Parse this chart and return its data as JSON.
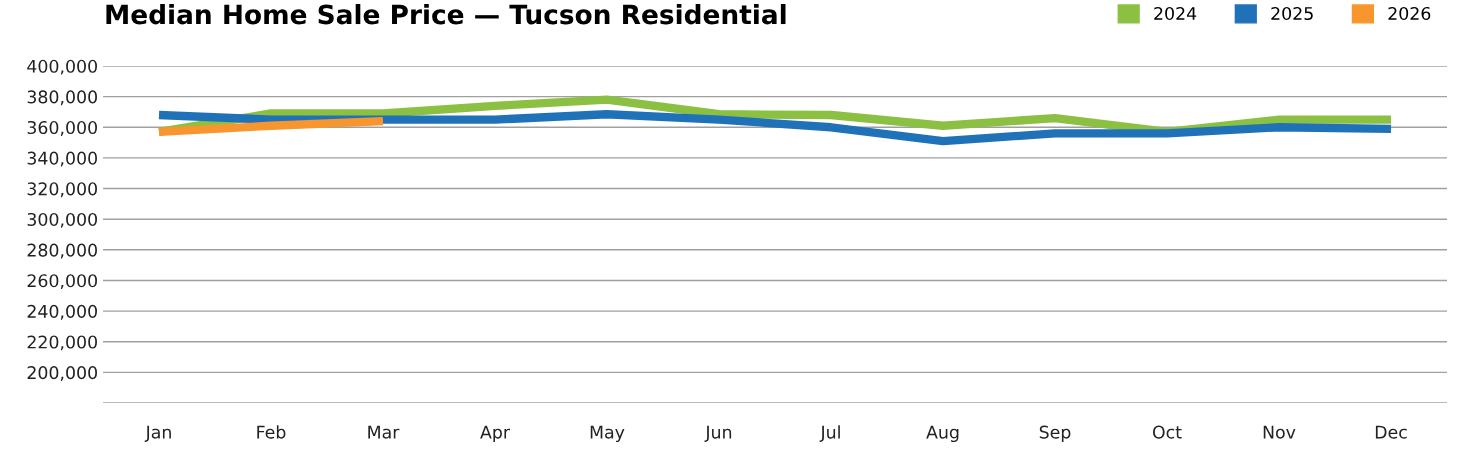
{
  "chart_data": {
    "type": "line",
    "title": "Median Home Sale Price — Tucson Residential",
    "categories": [
      "Jan",
      "Feb",
      "Mar",
      "Apr",
      "May",
      "Jun",
      "Jul",
      "Aug",
      "Sep",
      "Oct",
      "Nov",
      "Dec"
    ],
    "series": [
      {
        "name": "2024",
        "color": "#8bc043",
        "values": [
          357000,
          369000,
          369000,
          374000,
          378000,
          368500,
          368000,
          361000,
          366000,
          357000,
          365000,
          365000
        ]
      },
      {
        "name": "2025",
        "color": "#1f72b8",
        "values": [
          368000,
          365000,
          365000,
          365000,
          368500,
          365000,
          360000,
          351000,
          356000,
          356000,
          360000,
          359000
        ]
      },
      {
        "name": "2026",
        "color": "#f7962e",
        "values": [
          357000,
          361000,
          364000,
          null,
          null,
          null,
          null,
          null,
          null,
          null,
          null,
          null
        ]
      }
    ],
    "ylim": [
      180000,
      400000
    ],
    "yticks": [
      {
        "value": 180000,
        "label": null
      },
      {
        "value": 200000,
        "label": "200,000"
      },
      {
        "value": 220000,
        "label": "220,000"
      },
      {
        "value": 240000,
        "label": "240,000"
      },
      {
        "value": 260000,
        "label": "260,000"
      },
      {
        "value": 280000,
        "label": "280,000"
      },
      {
        "value": 300000,
        "label": "300,000"
      },
      {
        "value": 320000,
        "label": "320,000"
      },
      {
        "value": 340000,
        "label": "340,000"
      },
      {
        "value": 360000,
        "label": "360,000"
      },
      {
        "value": 380000,
        "label": "380,000"
      },
      {
        "value": 400000,
        "label": "400,000"
      }
    ],
    "grid": "y",
    "legend": "top right",
    "marker": "none",
    "line_style": "solid"
  }
}
